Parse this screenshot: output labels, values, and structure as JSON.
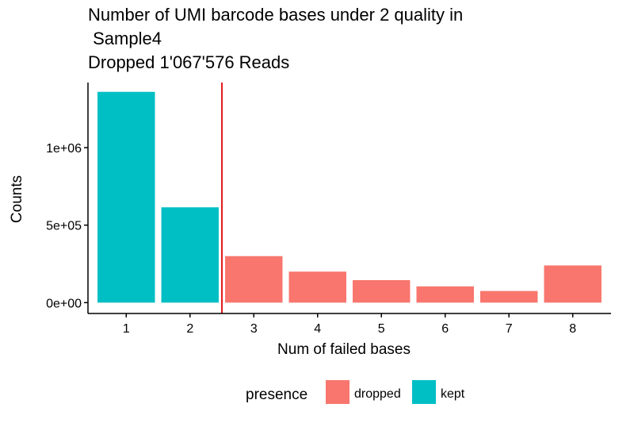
{
  "chart_data": {
    "type": "bar",
    "title_lines": [
      "Number of UMI barcode bases under 2 quality in",
      " Sample4",
      "Dropped 1'067'576 Reads"
    ],
    "xlabel": "Num of failed bases",
    "ylabel": "Counts",
    "categories": [
      "1",
      "2",
      "3",
      "4",
      "5",
      "6",
      "7",
      "8"
    ],
    "values": [
      1360000,
      615000,
      300000,
      200000,
      145000,
      105000,
      75000,
      240000
    ],
    "groups": [
      "kept",
      "kept",
      "dropped",
      "dropped",
      "dropped",
      "dropped",
      "dropped",
      "dropped"
    ],
    "y_ticks": [
      {
        "value": 0,
        "label": "0e+00"
      },
      {
        "value": 500000,
        "label": "5e+05"
      },
      {
        "value": 1000000,
        "label": "1e+06"
      }
    ],
    "ylim": [
      -70000,
      1420000
    ],
    "threshold_x": 2.5,
    "grid": false,
    "legend": {
      "position": "bottom",
      "title": "presence",
      "entries": [
        {
          "name": "dropped",
          "color": "#F8766D"
        },
        {
          "name": "kept",
          "color": "#00BFC4"
        }
      ]
    },
    "colors": {
      "dropped": "#F8766D",
      "kept": "#00BFC4",
      "threshold": "#E31A1C"
    }
  }
}
